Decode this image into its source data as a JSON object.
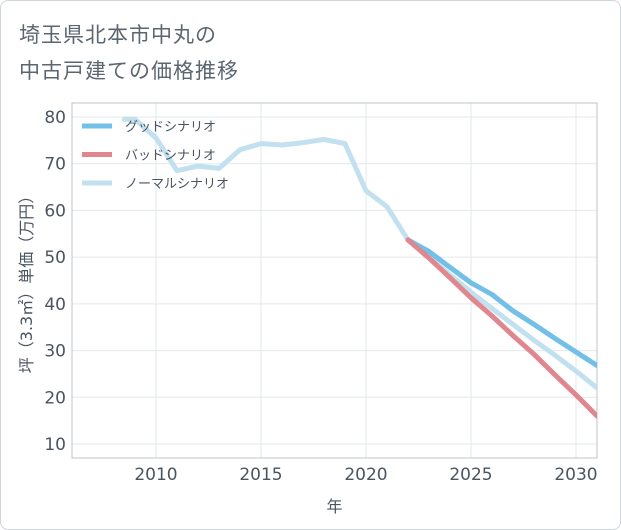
{
  "chart_data": {
    "type": "line",
    "title": [
      "埼玉県北本市中丸の",
      "中古戸建ての価格推移"
    ],
    "xlabel": "年",
    "ylabel": "坪（3.3㎡）単価（万円）",
    "xlim": [
      2006,
      2031
    ],
    "ylim": [
      7,
      83
    ],
    "xticks": [
      2010,
      2015,
      2020,
      2025,
      2030
    ],
    "yticks": [
      10,
      20,
      30,
      40,
      50,
      60,
      70,
      80
    ],
    "grid": true,
    "legend_position": "top-left",
    "series": [
      {
        "name": "ノーマルシナリオ",
        "color": "#c2e0ef",
        "x": [
          2008.5,
          2009,
          2010,
          2011,
          2012,
          2013,
          2014,
          2015,
          2016,
          2017,
          2018,
          2019,
          2020,
          2021,
          2022,
          2023,
          2024,
          2025,
          2026,
          2027,
          2028,
          2029,
          2030,
          2031
        ],
        "y": [
          79.5,
          79.5,
          75.5,
          68.5,
          69.5,
          69,
          73,
          74.3,
          74,
          74.5,
          75.2,
          74.3,
          64.2,
          60.8,
          53.7,
          50,
          46.2,
          42.5,
          39,
          35.6,
          32.2,
          29,
          25.6,
          22
        ]
      },
      {
        "name": "グッドシナリオ",
        "color": "#72bfe8",
        "x": [
          2022,
          2023,
          2024,
          2025,
          2026,
          2027,
          2028,
          2029,
          2030,
          2031
        ],
        "y": [
          53.7,
          51.2,
          47.8,
          44.5,
          42,
          38.5,
          35.6,
          32.6,
          29.7,
          26.8
        ]
      },
      {
        "name": "バッドシナリオ",
        "color": "#e0868e",
        "x": [
          2022,
          2023,
          2024,
          2025,
          2026,
          2027,
          2028,
          2029,
          2030,
          2031
        ],
        "y": [
          53.7,
          49.8,
          45.6,
          41.3,
          37.4,
          33.2,
          29.2,
          24.8,
          20.5,
          16
        ]
      }
    ],
    "legend": [
      {
        "name": "グッドシナリオ",
        "color": "#72bfe8"
      },
      {
        "name": "バッドシナリオ",
        "color": "#e0868e"
      },
      {
        "name": "ノーマルシナリオ",
        "color": "#c2e0ef"
      }
    ]
  }
}
